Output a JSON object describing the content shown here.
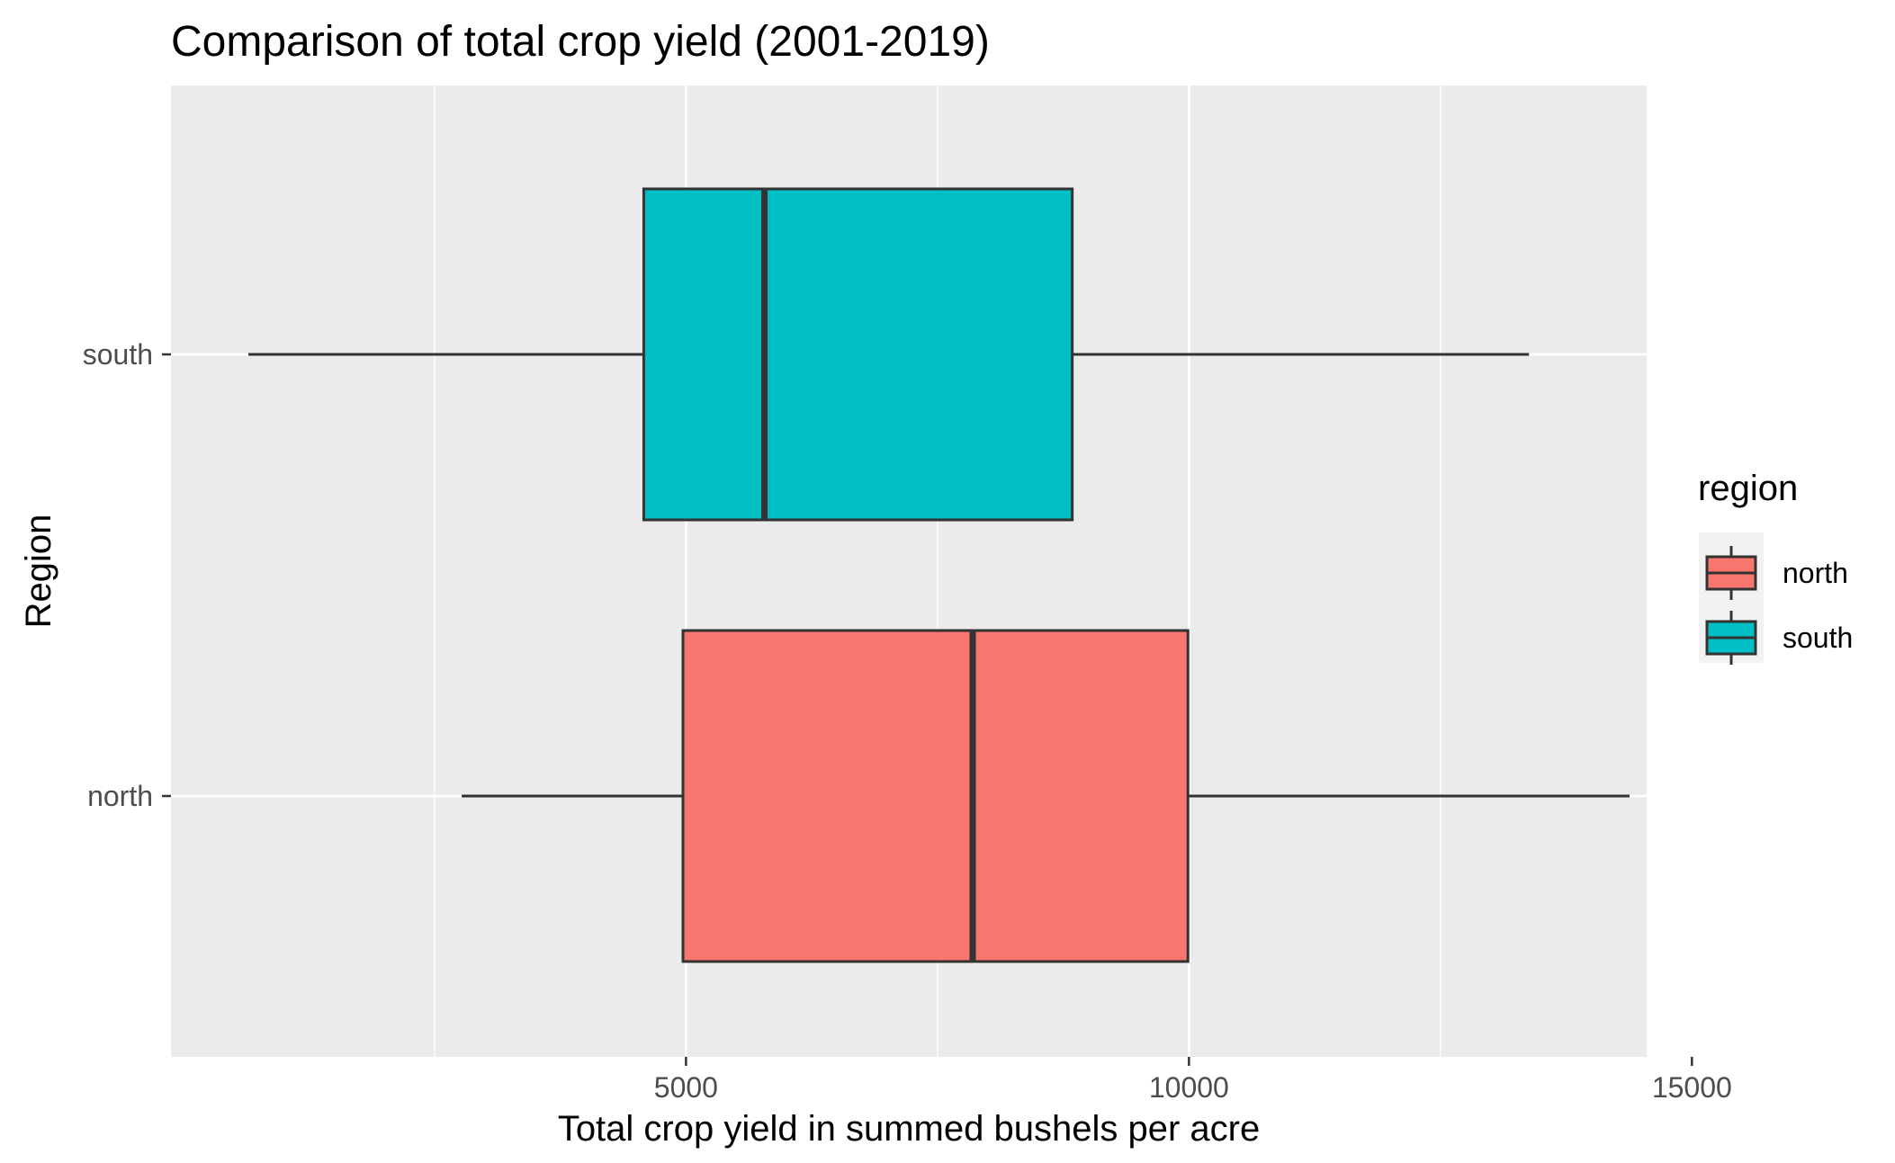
{
  "chart_data": {
    "type": "boxplot",
    "orientation": "horizontal",
    "title": "Comparison of total crop yield (2001-2019)",
    "xlabel": "Total crop yield in summed bushels per acre",
    "ylabel": "Region",
    "xlim": [
      -120,
      14550
    ],
    "x_ticks": [
      5000,
      10000,
      15000
    ],
    "x_tick_labels": [
      "5000",
      "10000",
      "15000"
    ],
    "x_minor_ticks": [
      2500,
      7500,
      12500
    ],
    "categories": [
      "north",
      "south"
    ],
    "grid": true,
    "legend": {
      "title": "region",
      "position": "right",
      "entries": [
        {
          "label": "north",
          "color": "#F8766D"
        },
        {
          "label": "south",
          "color": "#00BFC4"
        }
      ]
    },
    "series": [
      {
        "category": "north",
        "color": "#F8766D",
        "whisker_low": 2770,
        "q1": 4970,
        "median": 7850,
        "q3": 9990,
        "whisker_high": 14380
      },
      {
        "category": "south",
        "color": "#00BFC4",
        "whisker_low": 650,
        "q1": 4580,
        "median": 5780,
        "q3": 8840,
        "whisker_high": 13380
      }
    ],
    "panel_background": "#EBEBEB",
    "grid_color": "#FFFFFF",
    "outline_color": "#333333"
  }
}
